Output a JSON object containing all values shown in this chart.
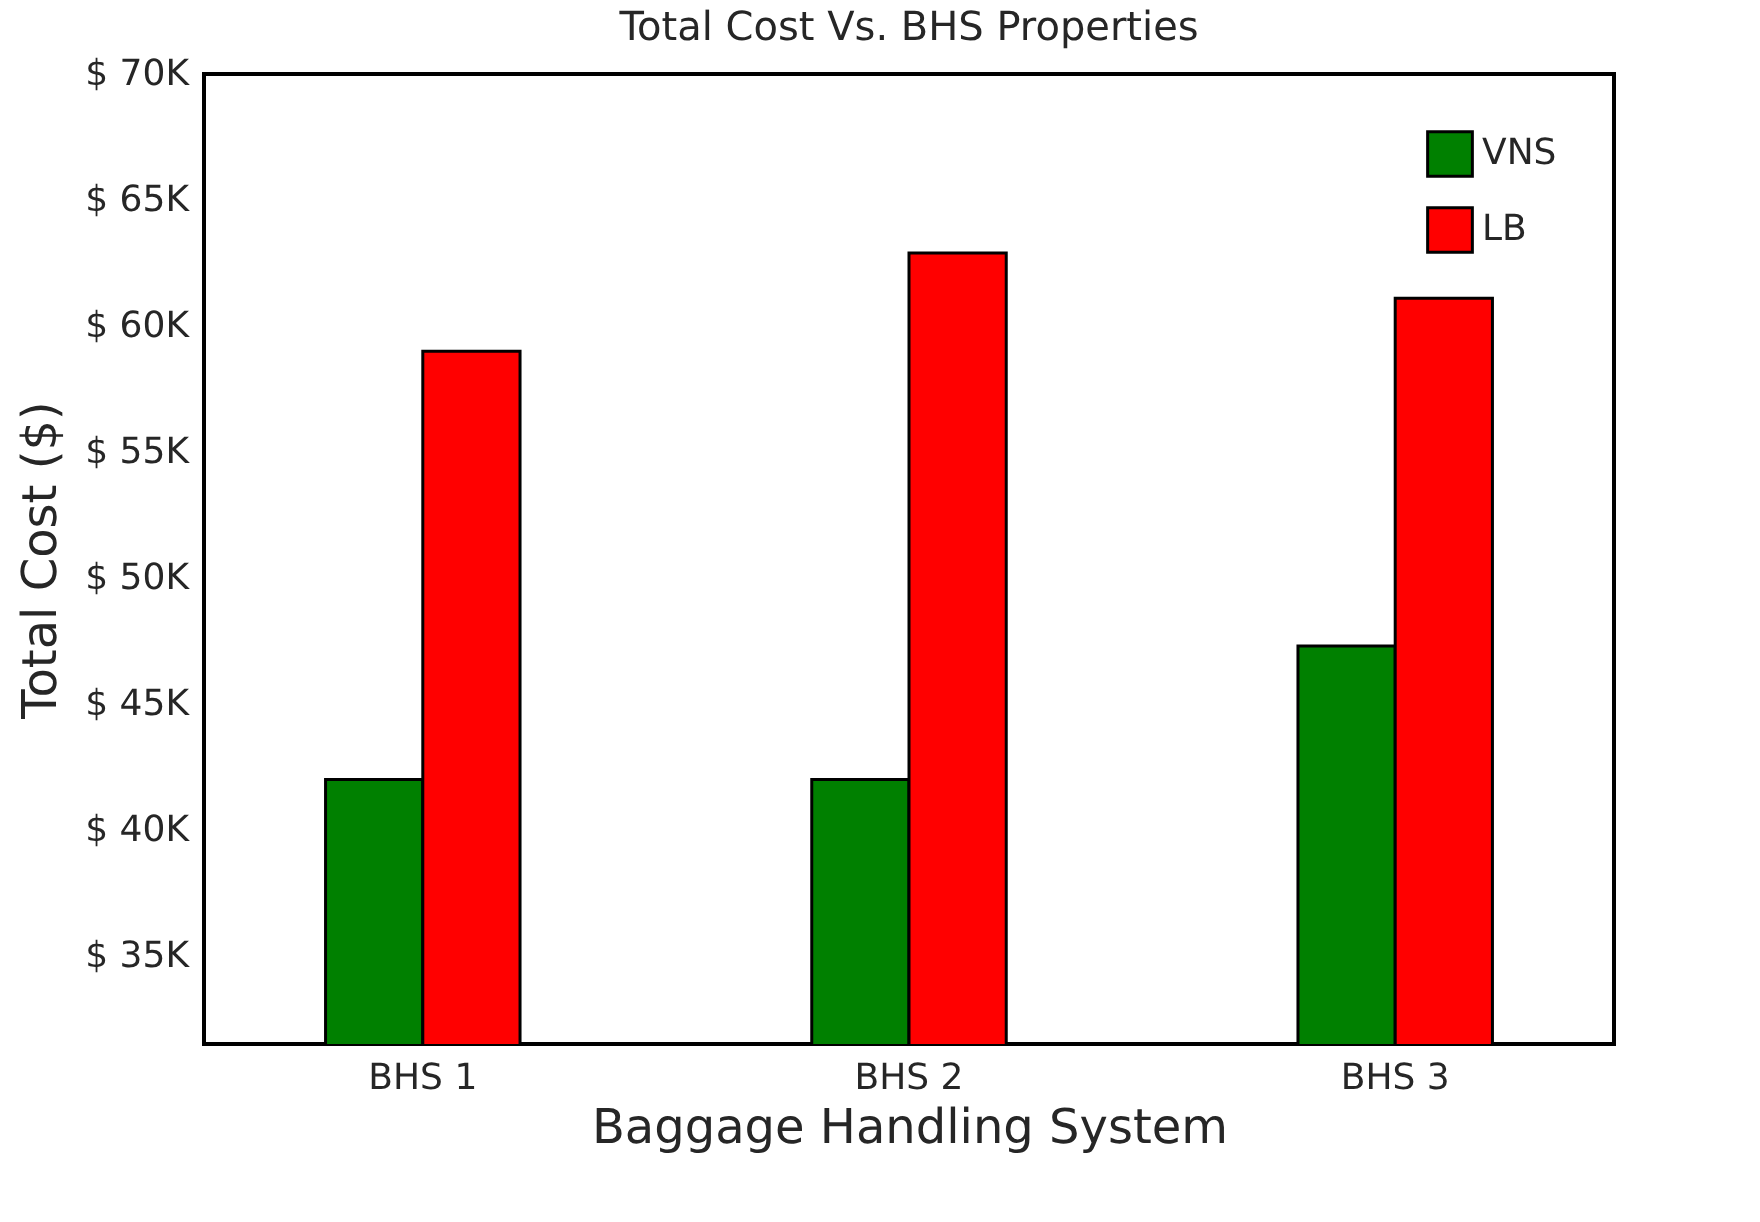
{
  "chart_data": {
    "type": "bar",
    "title": "Total Cost Vs. BHS Properties",
    "xlabel": "Baggage Handling System",
    "ylabel": "Total Cost ($)",
    "categories": [
      "BHS 1",
      "BHS 2",
      "BHS 3"
    ],
    "series": [
      {
        "name": "VNS",
        "color": "#008000",
        "values": [
          42000,
          42000,
          47300
        ]
      },
      {
        "name": "LB",
        "color": "#ff0000",
        "values": [
          59000,
          62900,
          61100
        ]
      }
    ],
    "ylim": [
      31500,
      70000
    ],
    "yticks": [
      {
        "value": 35000,
        "label": "$  35K"
      },
      {
        "value": 40000,
        "label": "$  40K"
      },
      {
        "value": 45000,
        "label": "$  45K"
      },
      {
        "value": 50000,
        "label": "$  50K"
      },
      {
        "value": 55000,
        "label": "$  55K"
      },
      {
        "value": 60000,
        "label": "$  60K"
      },
      {
        "value": 65000,
        "label": "$  65K"
      },
      {
        "value": 70000,
        "label": "$  70K"
      }
    ],
    "grid": false,
    "legend": "top right"
  }
}
